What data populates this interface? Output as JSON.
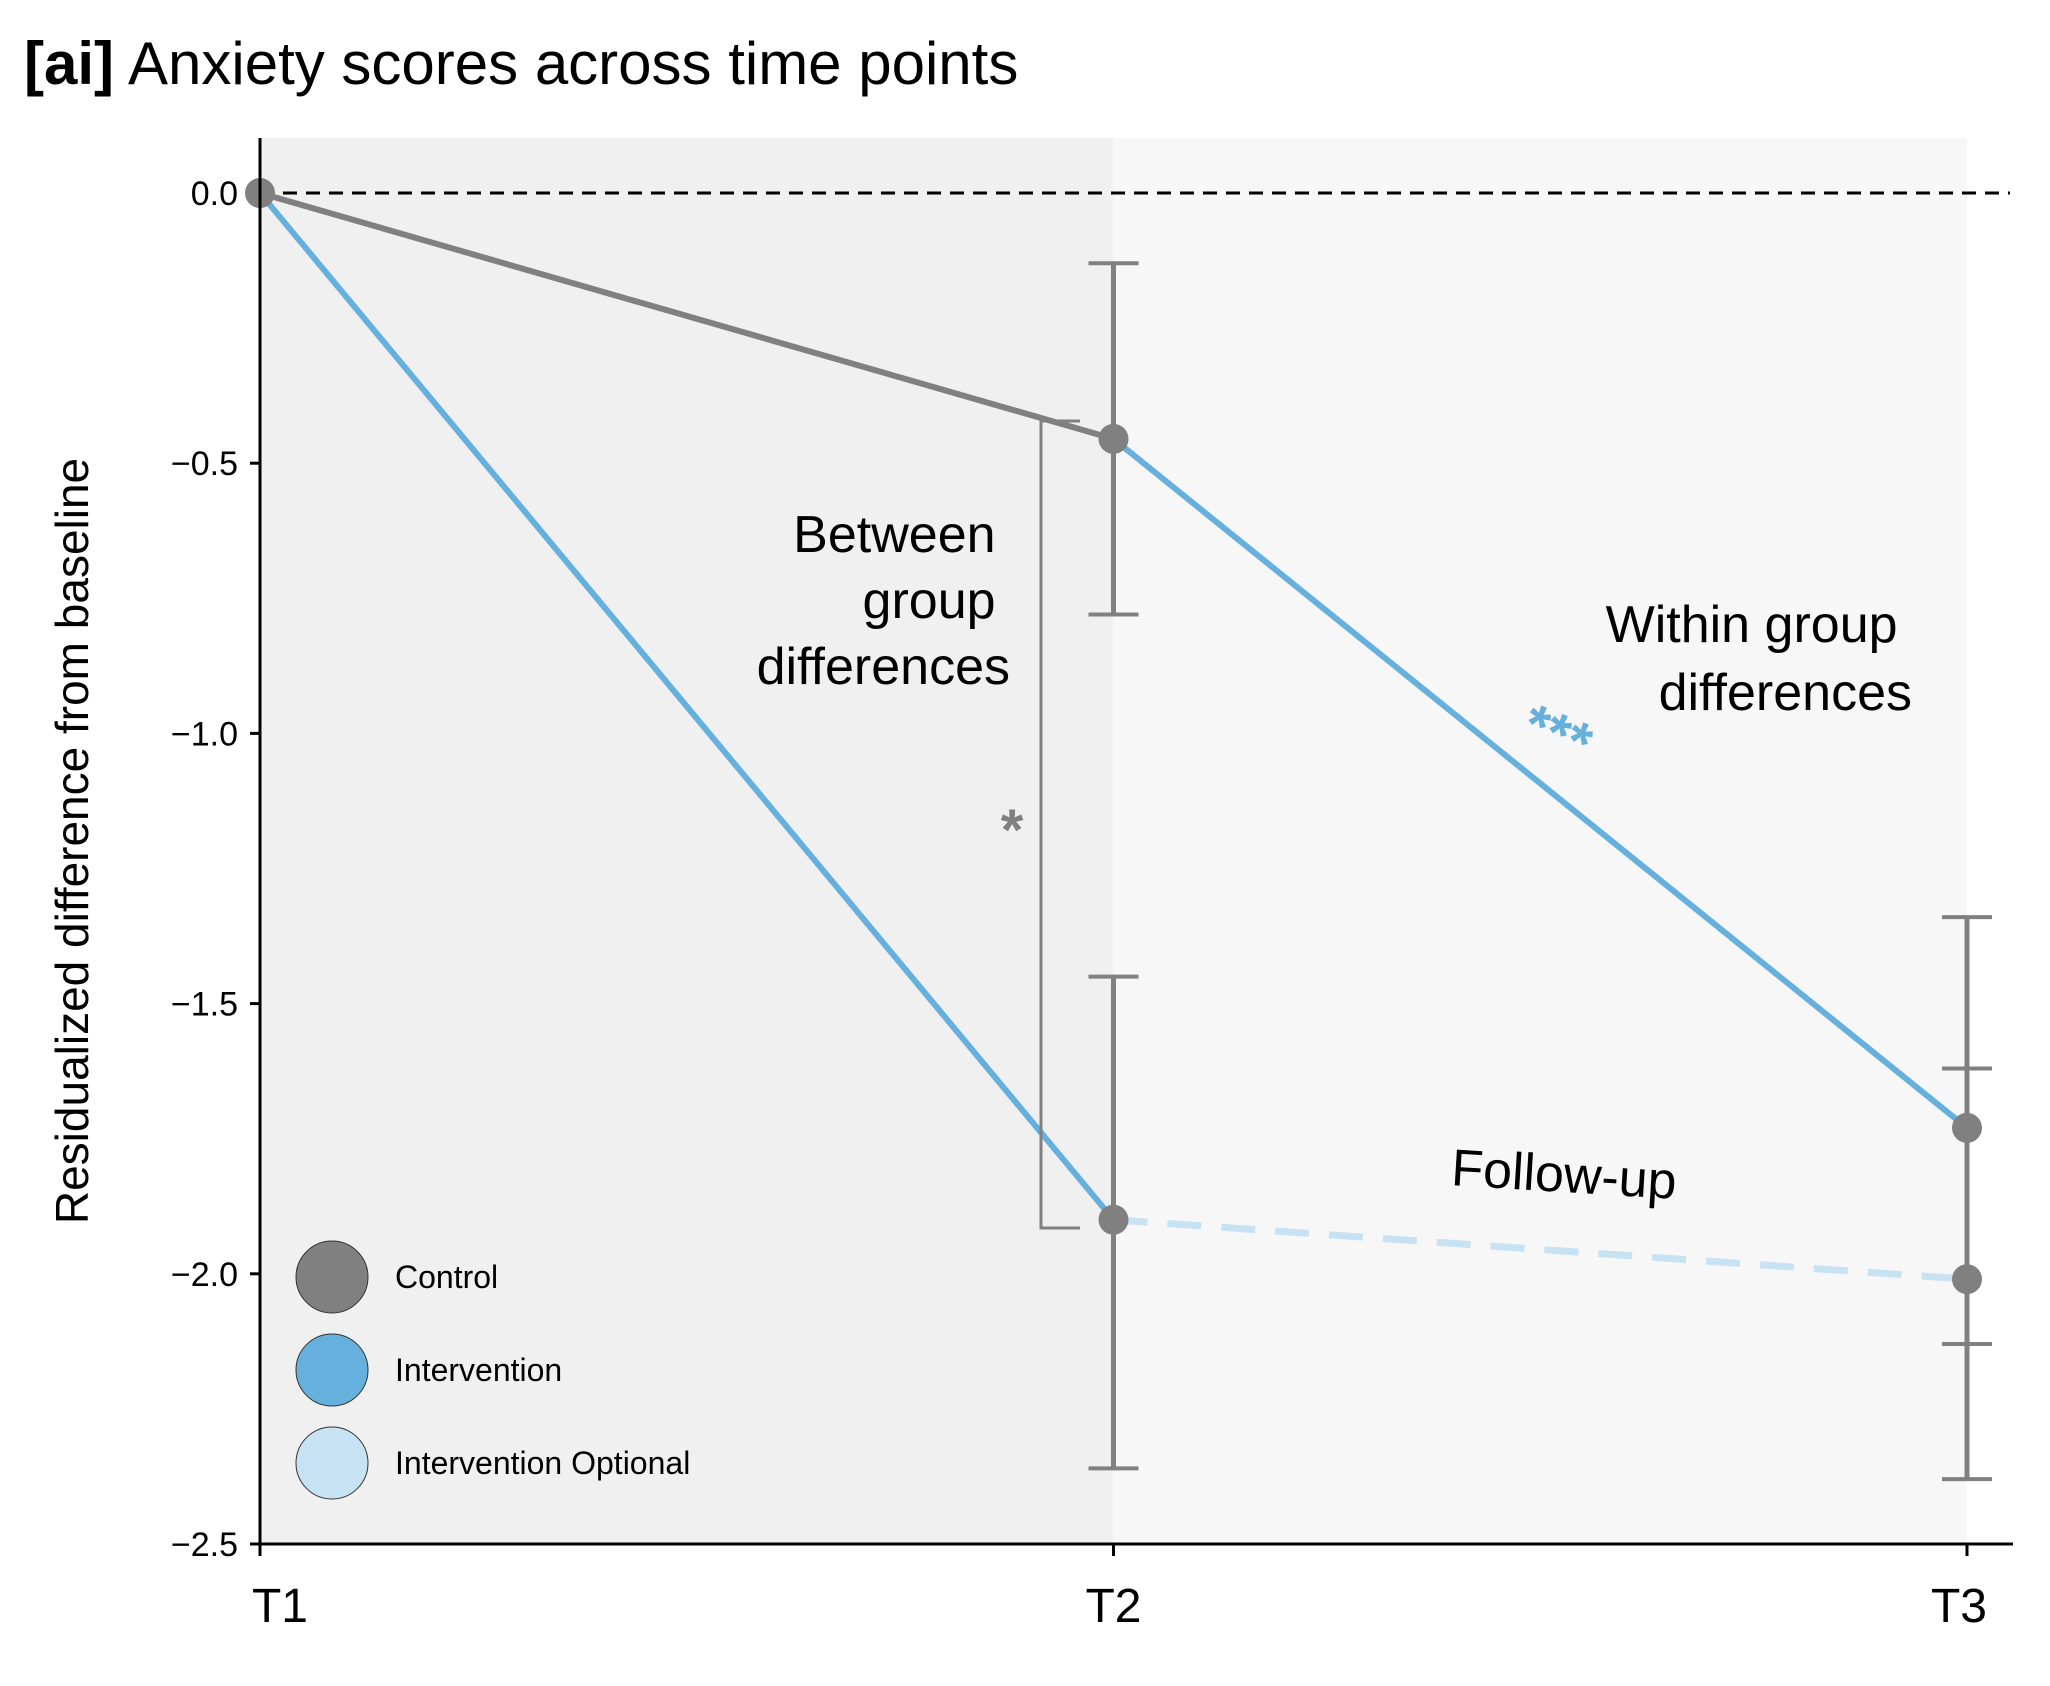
{
  "chart_data": {
    "type": "line",
    "title_tag": "[ai]",
    "title": "Anxiety scores across time points",
    "xlabel": "",
    "ylabel": "Residualized difference from baseline",
    "categories": [
      "T1",
      "T2",
      "T3"
    ],
    "ylim": [
      -2.5,
      0.1
    ],
    "yticks": [
      0.0,
      -0.5,
      -1.0,
      -1.5,
      -2.0,
      -2.5
    ],
    "ytick_labels": [
      "0.0",
      "−0.5",
      "−1.0",
      "−1.5",
      "−2.0",
      "−2.5"
    ],
    "reference_line": 0.0,
    "series": [
      {
        "name": "Control",
        "color": "#808080",
        "x": [
          0,
          1
        ],
        "values": [
          0.0,
          -0.455
        ],
        "err_low": [
          null,
          -0.78
        ],
        "err_high": [
          null,
          -0.13
        ],
        "dashed": false
      },
      {
        "name": "Intervention",
        "color": "#66b0de",
        "x": [
          0,
          1,
          2
        ],
        "values": [
          0.0,
          -1.9,
          -1.73
        ],
        "err_low": [
          null,
          -2.36,
          -2.13
        ],
        "err_high": [
          null,
          -1.45,
          -1.34
        ],
        "dashed": false,
        "segment_from": "Control T2 to T3 and T1 to T2"
      },
      {
        "name": "Intervention Optional",
        "color": "#c6e2f3",
        "x": [
          1,
          2
        ],
        "values": [
          -1.9,
          -2.01
        ],
        "err_low": [
          null,
          -2.38
        ],
        "err_high": [
          null,
          -1.62
        ],
        "dashed": true
      }
    ],
    "legend": {
      "placement": "lower-left",
      "entries": [
        "Control",
        "Intervention",
        "Intervention Optional"
      ]
    },
    "annotations": {
      "between": [
        "Between",
        "group",
        "differences"
      ],
      "between_sig": "*",
      "within": [
        "Within group",
        "differences"
      ],
      "within_sig": "***",
      "followup": "Follow-up"
    },
    "colors": {
      "control": "#808080",
      "intervention": "#66b0de",
      "optional": "#c6e2f3",
      "bg_left": "#f0f0f0",
      "bg_right": "#f7f7f7"
    }
  }
}
